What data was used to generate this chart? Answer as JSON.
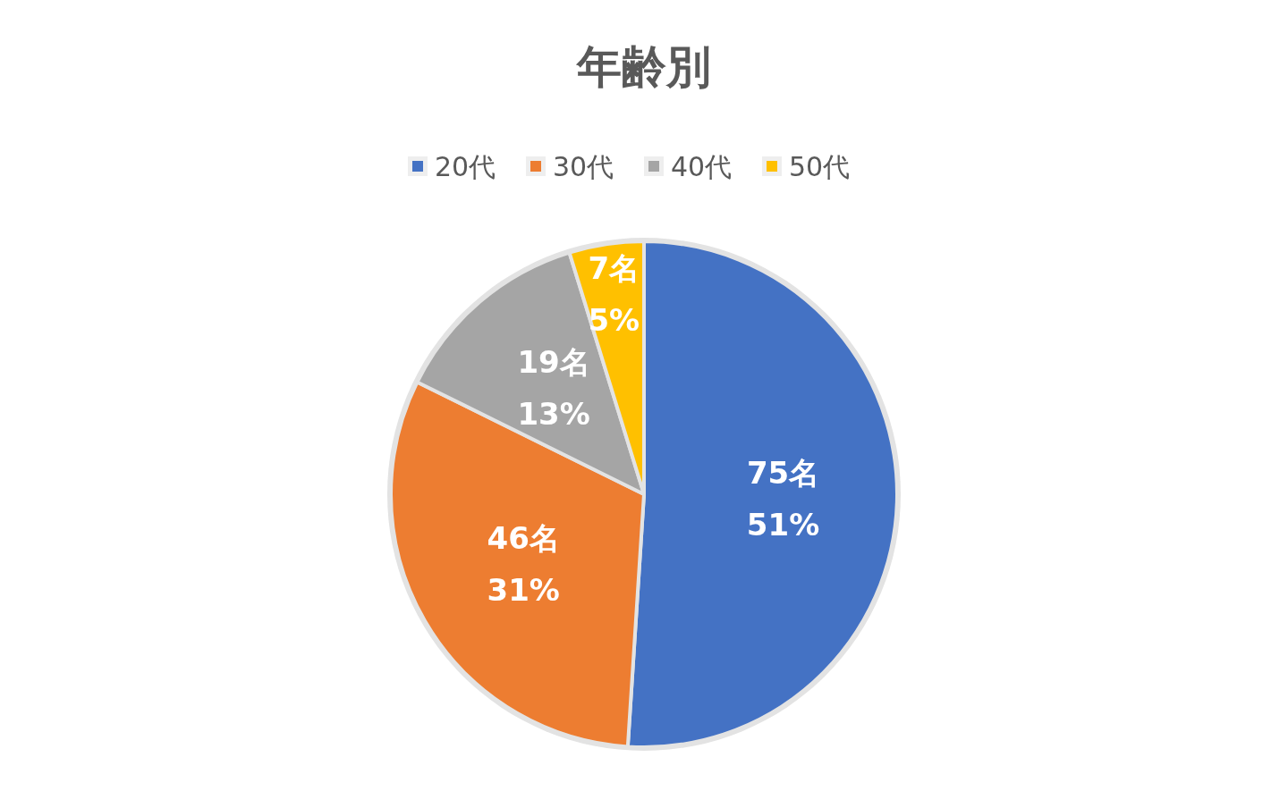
{
  "chart_data": {
    "type": "pie",
    "title": "年齢別",
    "categories": [
      "20代",
      "30代",
      "40代",
      "50代"
    ],
    "values": [
      75,
      46,
      19,
      7
    ],
    "colors": [
      "#4472c4",
      "#ed7d31",
      "#a5a5a5",
      "#ffc000"
    ],
    "value_labels": [
      "75名\n51%",
      "46名\n31%",
      "19名\n13%",
      "7名\n5%"
    ],
    "legend": "top"
  }
}
